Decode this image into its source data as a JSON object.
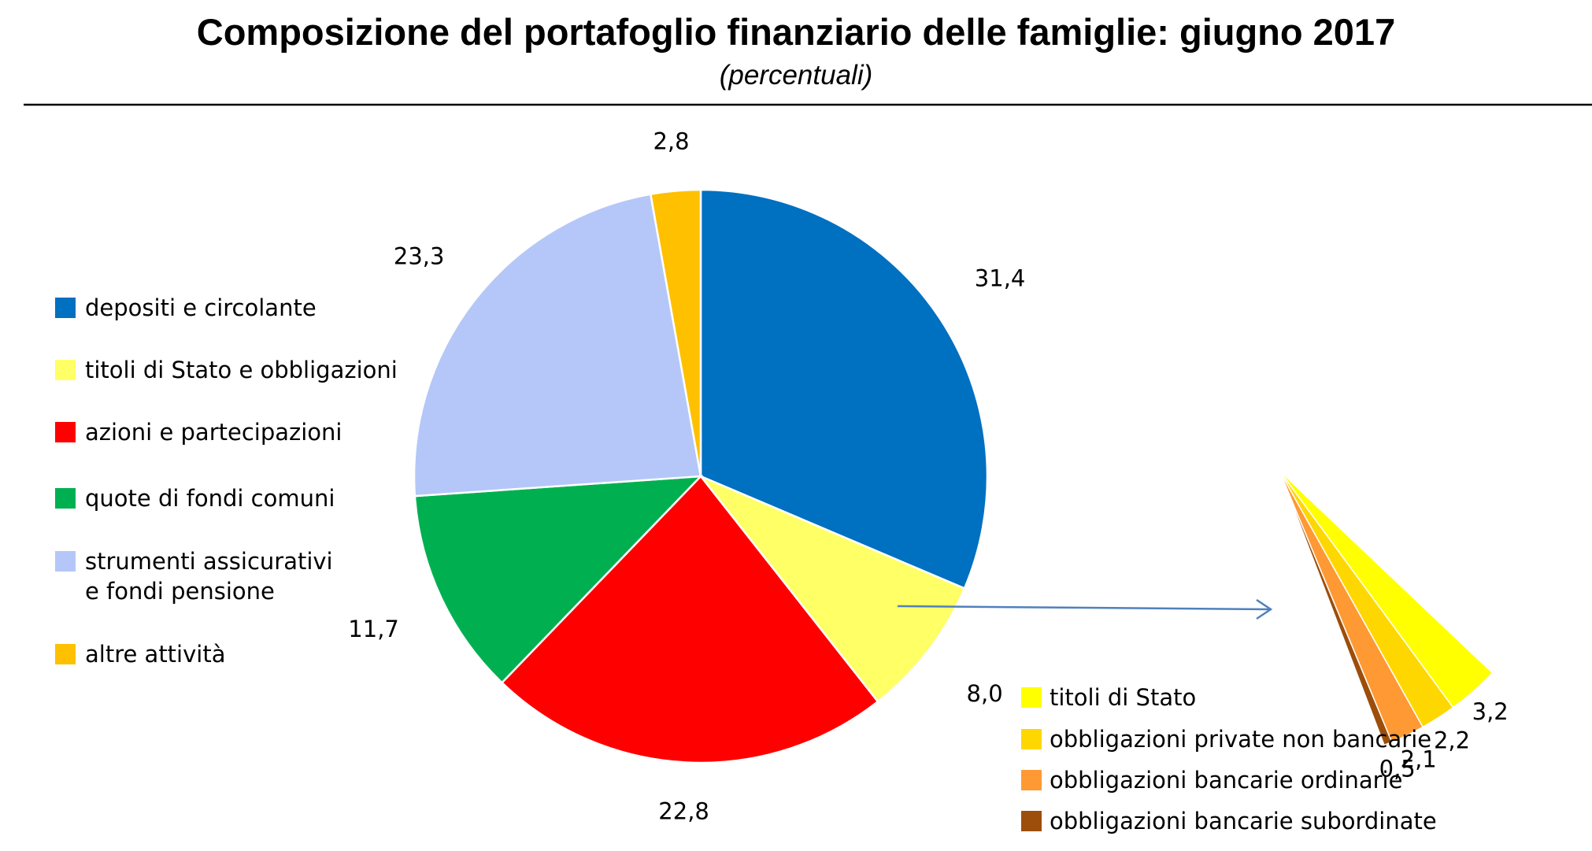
{
  "chart_data": [
    {
      "type": "pie",
      "title": "Composizione del portafoglio finanziario delle famiglie: giugno 2017",
      "subtitle": "(percentuali)",
      "legend_position": "left",
      "slices": [
        {
          "label": "depositi e circolante",
          "value": 31.4,
          "value_label": "31,4",
          "color": "#0070C0"
        },
        {
          "label": "titoli di Stato e obbligazioni",
          "value": 8.0,
          "value_label": "8,0",
          "color": "#FFFF66"
        },
        {
          "label": "azioni e partecipazioni",
          "value": 22.8,
          "value_label": "22,8",
          "color": "#FF0000"
        },
        {
          "label": "quote di fondi comuni",
          "value": 11.7,
          "value_label": "11,7",
          "color": "#00B050"
        },
        {
          "label": "strumenti assicurativi e fondi pensione",
          "label_lines": [
            "strumenti assicurativi",
            "e fondi pensione"
          ],
          "value": 23.3,
          "value_label": "23,3",
          "color": "#B4C7F8"
        },
        {
          "label": "altre attività",
          "value": 2.8,
          "value_label": "2,8",
          "color": "#FFC000"
        }
      ]
    },
    {
      "type": "pie",
      "detail_of": "titoli di Stato e obbligazioni",
      "legend_position": "bottom",
      "slices": [
        {
          "label": "titoli di Stato",
          "value": 3.2,
          "value_label": "3,2",
          "color": "#FFFF00"
        },
        {
          "label": "obbligazioni private non bancarie",
          "value": 2.2,
          "value_label": "2,2",
          "color": "#FFD700"
        },
        {
          "label": "obbligazioni bancarie ordinarie",
          "value": 2.1,
          "value_label": "2,1",
          "color": "#FF9933"
        },
        {
          "label": "obbligazioni bancarie subordinate",
          "value": 0.5,
          "value_label": "0,5",
          "color": "#9C4E0A"
        }
      ]
    }
  ]
}
